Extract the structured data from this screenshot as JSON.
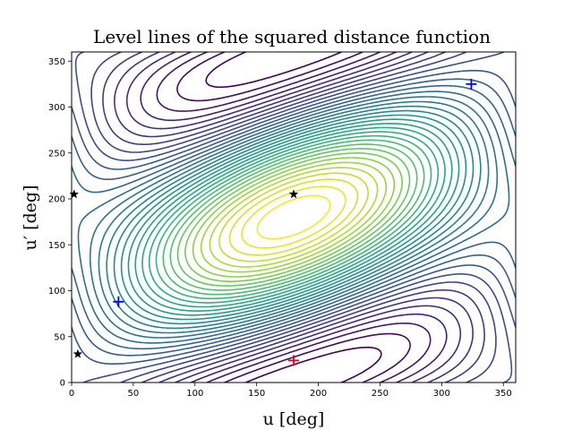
{
  "chart_data": {
    "type": "contour",
    "title": "Level lines of the squared distance function",
    "xlabel": "u [deg]",
    "ylabel": "u′ [deg]",
    "xlim": [
      0,
      360
    ],
    "ylim": [
      0,
      360
    ],
    "xticks": [
      "0",
      "50",
      "100",
      "150",
      "200",
      "250",
      "300",
      "350"
    ],
    "yticks": [
      "0",
      "50",
      "100",
      "150",
      "200",
      "250",
      "300",
      "350"
    ],
    "grid": false,
    "colormap": "viridis",
    "markers": {
      "minima": [
        {
          "x": 38,
          "y": 88
        },
        {
          "x": 324,
          "y": 325
        }
      ],
      "maximum": [
        {
          "x": 180,
          "y": 24
        }
      ],
      "saddles": [
        {
          "x": 2,
          "y": 205
        },
        {
          "x": 180,
          "y": 205
        },
        {
          "x": 5,
          "y": 31
        }
      ]
    },
    "marker_colors": {
      "minima": "#0000ff",
      "maximum": "#e8001c",
      "saddles": "#000000"
    }
  }
}
